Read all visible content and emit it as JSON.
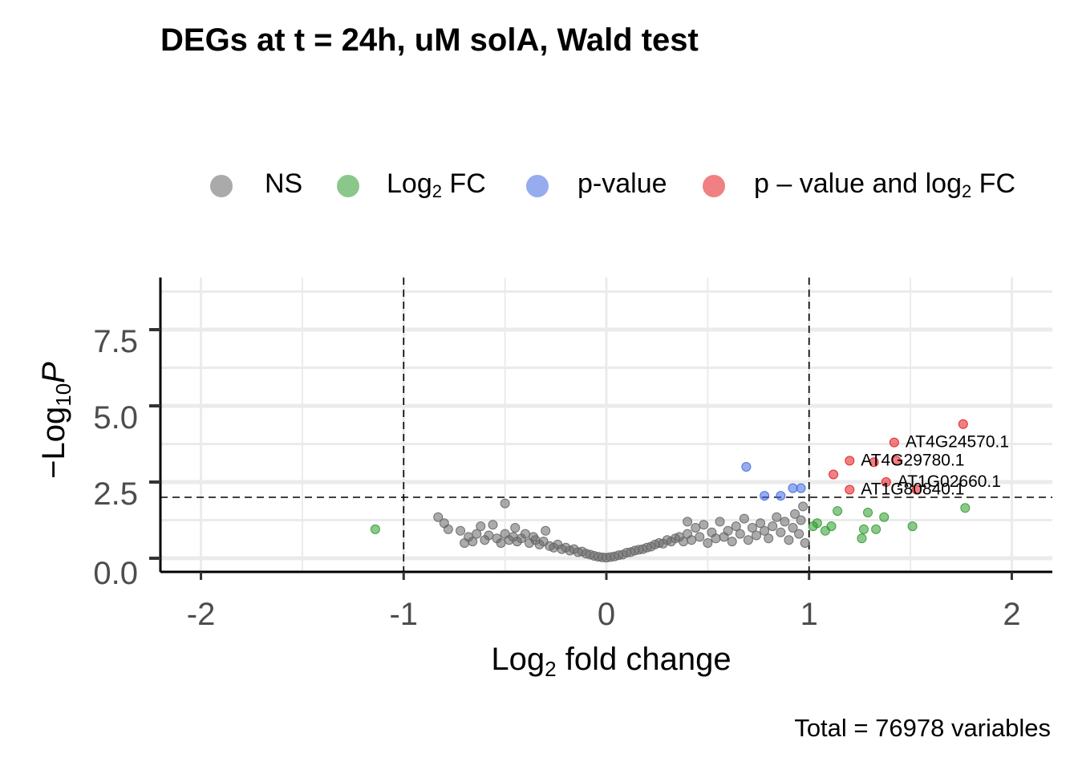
{
  "chart_data": {
    "type": "scatter",
    "title": "DEGs at t = 24h, uM solA, Wald test",
    "xlabel_prefix": "Log",
    "xlabel_sub": "2",
    "xlabel_suffix": " fold change",
    "ylabel_prefix": "−Log",
    "ylabel_sub": "10",
    "ylabel_suffix": "P",
    "caption": "Total = 76978 variables",
    "xlim": [
      -2.2,
      2.2
    ],
    "ylim": [
      0,
      10
    ],
    "x_ticks": [
      -2,
      -1,
      0,
      1,
      2
    ],
    "x_tick_labels": [
      "-2",
      "-1",
      "0",
      "1",
      "2"
    ],
    "y_ticks": [
      0,
      2.5,
      5,
      7.5
    ],
    "y_tick_labels": [
      "0.0",
      "2.5",
      "5.0",
      "7.5"
    ],
    "grid": true,
    "thresholds": {
      "log2fc": [
        -1,
        1
      ],
      "neg_log10_p": 2
    },
    "legend": {
      "position": "top",
      "items": [
        {
          "key": "NS",
          "prefix": "NS",
          "sub": "",
          "suffix": "",
          "color": "#666666"
        },
        {
          "key": "FC",
          "prefix": "Log",
          "sub": "2",
          "suffix": " FC",
          "color": "#2e9b2e"
        },
        {
          "key": "P",
          "prefix": "p-value",
          "sub": "",
          "suffix": "",
          "color": "#4169e1"
        },
        {
          "key": "FC_P",
          "prefix": "p – value and log",
          "sub": "2",
          "suffix": " FC",
          "color": "#e41a1c"
        }
      ]
    },
    "series": [
      {
        "key": "NS",
        "points": [
          [
            -0.83,
            1.35
          ],
          [
            -0.8,
            1.15
          ],
          [
            -0.78,
            0.95
          ],
          [
            -0.72,
            0.9
          ],
          [
            -0.7,
            0.5
          ],
          [
            -0.68,
            0.7
          ],
          [
            -0.66,
            0.55
          ],
          [
            -0.64,
            0.8
          ],
          [
            -0.62,
            1.05
          ],
          [
            -0.6,
            0.6
          ],
          [
            -0.58,
            0.75
          ],
          [
            -0.56,
            1.1
          ],
          [
            -0.54,
            0.65
          ],
          [
            -0.52,
            0.5
          ],
          [
            -0.5,
            1.8
          ],
          [
            -0.5,
            0.8
          ],
          [
            -0.48,
            0.6
          ],
          [
            -0.46,
            0.7
          ],
          [
            -0.45,
            1.0
          ],
          [
            -0.44,
            0.55
          ],
          [
            -0.42,
            0.65
          ],
          [
            -0.4,
            0.8
          ],
          [
            -0.38,
            0.5
          ],
          [
            -0.36,
            0.7
          ],
          [
            -0.35,
            0.6
          ],
          [
            -0.33,
            0.45
          ],
          [
            -0.31,
            0.55
          ],
          [
            -0.3,
            0.9
          ],
          [
            -0.28,
            0.4
          ],
          [
            -0.26,
            0.35
          ],
          [
            -0.24,
            0.45
          ],
          [
            -0.22,
            0.3
          ],
          [
            -0.2,
            0.35
          ],
          [
            -0.18,
            0.25
          ],
          [
            -0.16,
            0.3
          ],
          [
            -0.14,
            0.2
          ],
          [
            -0.12,
            0.22
          ],
          [
            -0.1,
            0.15
          ],
          [
            -0.08,
            0.12
          ],
          [
            -0.06,
            0.08
          ],
          [
            -0.04,
            0.05
          ],
          [
            -0.02,
            0.03
          ],
          [
            0.0,
            0.02
          ],
          [
            0.02,
            0.04
          ],
          [
            0.04,
            0.06
          ],
          [
            0.06,
            0.1
          ],
          [
            0.08,
            0.12
          ],
          [
            0.1,
            0.18
          ],
          [
            0.12,
            0.2
          ],
          [
            0.14,
            0.25
          ],
          [
            0.16,
            0.28
          ],
          [
            0.18,
            0.3
          ],
          [
            0.2,
            0.35
          ],
          [
            0.22,
            0.38
          ],
          [
            0.24,
            0.45
          ],
          [
            0.26,
            0.5
          ],
          [
            0.28,
            0.48
          ],
          [
            0.3,
            0.6
          ],
          [
            0.32,
            0.55
          ],
          [
            0.34,
            0.65
          ],
          [
            0.36,
            0.7
          ],
          [
            0.38,
            0.55
          ],
          [
            0.4,
            1.2
          ],
          [
            0.4,
            0.8
          ],
          [
            0.42,
            0.6
          ],
          [
            0.44,
            1.0
          ],
          [
            0.46,
            0.7
          ],
          [
            0.48,
            1.1
          ],
          [
            0.5,
            0.5
          ],
          [
            0.52,
            0.85
          ],
          [
            0.54,
            0.65
          ],
          [
            0.56,
            1.2
          ],
          [
            0.58,
            0.7
          ],
          [
            0.6,
            0.9
          ],
          [
            0.62,
            0.55
          ],
          [
            0.64,
            1.05
          ],
          [
            0.66,
            0.8
          ],
          [
            0.68,
            1.3
          ],
          [
            0.7,
            0.6
          ],
          [
            0.72,
            1.0
          ],
          [
            0.74,
            0.75
          ],
          [
            0.76,
            1.15
          ],
          [
            0.78,
            0.9
          ],
          [
            0.8,
            0.65
          ],
          [
            0.82,
            1.05
          ],
          [
            0.84,
            1.35
          ],
          [
            0.86,
            0.85
          ],
          [
            0.88,
            1.2
          ],
          [
            0.9,
            0.6
          ],
          [
            0.92,
            1.0
          ],
          [
            0.93,
            1.45
          ],
          [
            0.95,
            0.8
          ],
          [
            0.96,
            1.25
          ],
          [
            0.98,
            0.5
          ],
          [
            0.97,
            1.7
          ]
        ]
      },
      {
        "key": "FC",
        "points": [
          [
            -1.14,
            0.95
          ],
          [
            1.02,
            1.05
          ],
          [
            1.04,
            1.15
          ],
          [
            1.08,
            0.9
          ],
          [
            1.11,
            1.05
          ],
          [
            1.14,
            1.55
          ],
          [
            1.26,
            0.65
          ],
          [
            1.27,
            0.95
          ],
          [
            1.29,
            1.5
          ],
          [
            1.33,
            0.95
          ],
          [
            1.37,
            1.35
          ],
          [
            1.51,
            1.05
          ],
          [
            1.77,
            1.65
          ]
        ]
      },
      {
        "key": "P",
        "points": [
          [
            0.69,
            3.0
          ],
          [
            0.78,
            2.05
          ],
          [
            0.86,
            2.05
          ],
          [
            0.92,
            2.3
          ],
          [
            0.96,
            2.3
          ]
        ]
      },
      {
        "key": "FC_P",
        "points": [
          [
            1.12,
            2.75
          ],
          [
            1.2,
            2.25
          ],
          [
            1.2,
            3.2
          ],
          [
            1.32,
            3.15
          ],
          [
            1.38,
            2.5
          ],
          [
            1.42,
            3.8
          ],
          [
            1.43,
            3.2
          ],
          [
            1.53,
            2.25
          ],
          [
            1.76,
            4.4
          ]
        ]
      }
    ],
    "labels": [
      {
        "text": "AT4G24570.1",
        "x": 1.42,
        "y": 3.8
      },
      {
        "text": "AT4G29780.1",
        "x": 1.2,
        "y": 3.2
      },
      {
        "text": "AT1G02660.1",
        "x": 1.38,
        "y": 2.5
      },
      {
        "text": "AT1G80840.1",
        "x": 1.2,
        "y": 2.25
      }
    ]
  }
}
